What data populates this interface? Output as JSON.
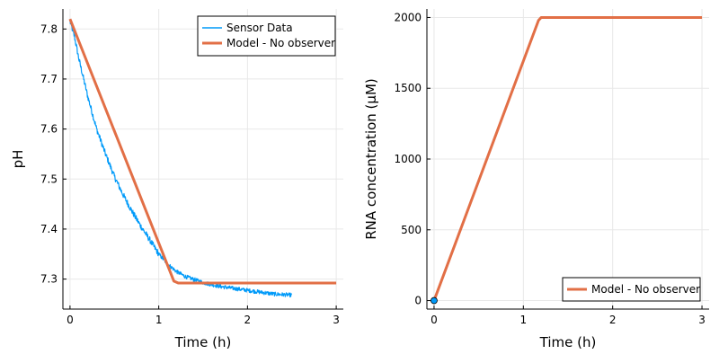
{
  "colors": {
    "sensor": "#009af9",
    "model": "#e26f46",
    "grid": "#e8e8e8",
    "axis": "#000000"
  },
  "chart_data": [
    {
      "type": "line",
      "xlabel": "Time (h)",
      "ylabel": "pH",
      "xlim": [
        -0.08,
        3.08
      ],
      "ylim": [
        7.24,
        7.84
      ],
      "xticks": [
        0,
        1,
        2,
        3
      ],
      "xtick_labels": [
        "0",
        "1",
        "2",
        "3"
      ],
      "yticks": [
        7.3,
        7.4,
        7.5,
        7.6,
        7.7,
        7.8
      ],
      "ytick_labels": [
        "7.3",
        "7.4",
        "7.5",
        "7.6",
        "7.7",
        "7.8"
      ],
      "grid": true,
      "legend_position": "top-right",
      "series": [
        {
          "name": "Sensor Data",
          "color_key": "sensor",
          "noisy": true,
          "x": [
            0,
            0.05,
            0.1,
            0.2,
            0.3,
            0.4,
            0.5,
            0.6,
            0.7,
            0.8,
            0.9,
            1.0,
            1.1,
            1.2,
            1.3,
            1.5,
            1.7,
            1.9,
            2.1,
            2.3,
            2.5
          ],
          "y": [
            7.815,
            7.785,
            7.74,
            7.665,
            7.6,
            7.55,
            7.505,
            7.468,
            7.435,
            7.405,
            7.378,
            7.35,
            7.33,
            7.315,
            7.305,
            7.293,
            7.285,
            7.28,
            7.275,
            7.27,
            7.268
          ]
        },
        {
          "name": "Model - No observer",
          "color_key": "model",
          "x": [
            0,
            1.17,
            1.22,
            3.0
          ],
          "y": [
            7.82,
            7.296,
            7.292,
            7.292
          ]
        }
      ]
    },
    {
      "type": "line",
      "xlabel": "Time (h)",
      "ylabel": "RNA concentration (μM)",
      "xlim": [
        -0.08,
        3.08
      ],
      "ylim": [
        -60,
        2060
      ],
      "xticks": [
        0,
        1,
        2,
        3
      ],
      "xtick_labels": [
        "0",
        "1",
        "2",
        "3"
      ],
      "yticks": [
        0,
        500,
        1000,
        1500,
        2000
      ],
      "ytick_labels": [
        "0",
        "500",
        "1000",
        "1500",
        "2000"
      ],
      "grid": true,
      "legend_position": "bottom-right",
      "series": [
        {
          "name": "Model - No observer",
          "color_key": "model",
          "x": [
            0,
            1.17,
            1.2,
            3.0
          ],
          "y": [
            0,
            1980,
            2000,
            2000
          ]
        }
      ],
      "markers": [
        {
          "x": 0,
          "y": 0,
          "color_key": "sensor"
        }
      ]
    }
  ]
}
